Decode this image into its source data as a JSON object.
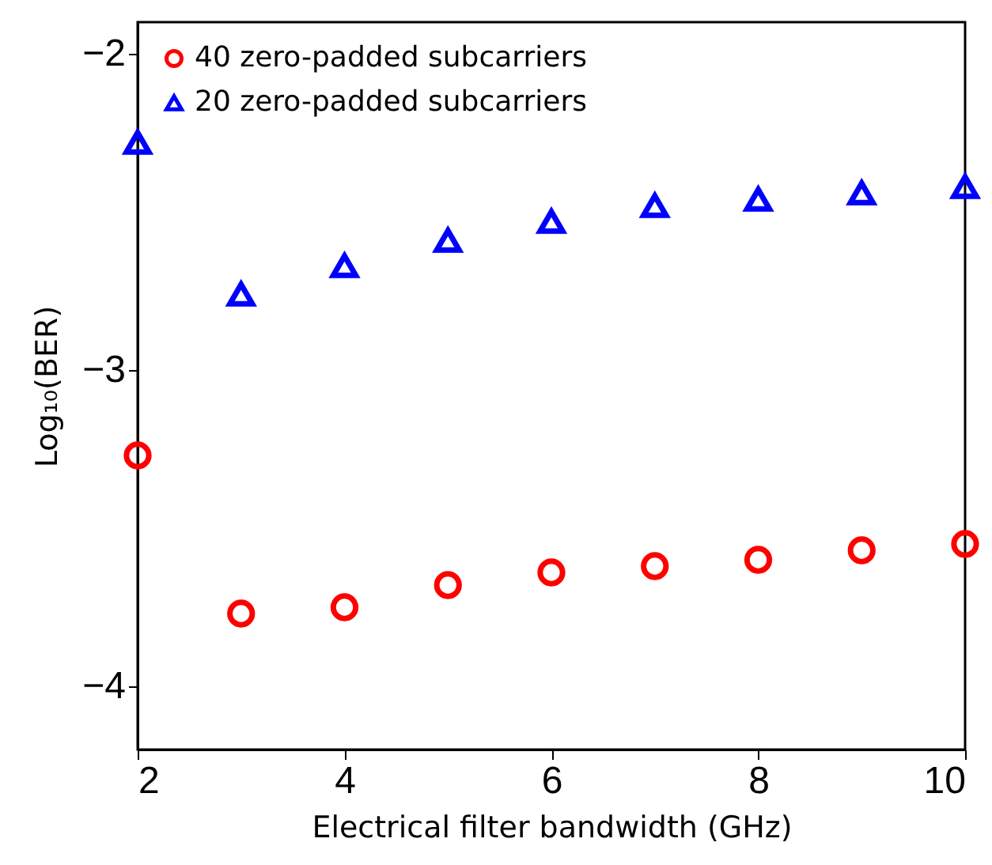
{
  "chart_data": {
    "type": "scatter",
    "xlabel": "Electrical filter bandwidth (GHz)",
    "ylabel": "Log₁₀(BER)",
    "x": [
      2,
      3,
      4,
      5,
      6,
      7,
      8,
      9,
      10
    ],
    "series": [
      {
        "name": "40 zero-padded subcarriers",
        "color": "#ff0000",
        "marker": "circle",
        "values": [
          -3.27,
          -3.77,
          -3.75,
          -3.68,
          -3.64,
          -3.62,
          -3.6,
          -3.57,
          -3.55
        ]
      },
      {
        "name": "20 zero-padded subcarriers",
        "color": "#0000ff",
        "marker": "triangle",
        "values": [
          -2.28,
          -2.76,
          -2.67,
          -2.59,
          -2.53,
          -2.48,
          -2.46,
          -2.44,
          -2.42
        ]
      }
    ],
    "xlim": [
      2,
      10
    ],
    "xticks": [
      2,
      4,
      6,
      8,
      10
    ],
    "ylim": [
      -4.2,
      -1.9
    ],
    "yticks": [
      -4,
      -3,
      -2
    ],
    "grid": false,
    "legend": "top left"
  }
}
